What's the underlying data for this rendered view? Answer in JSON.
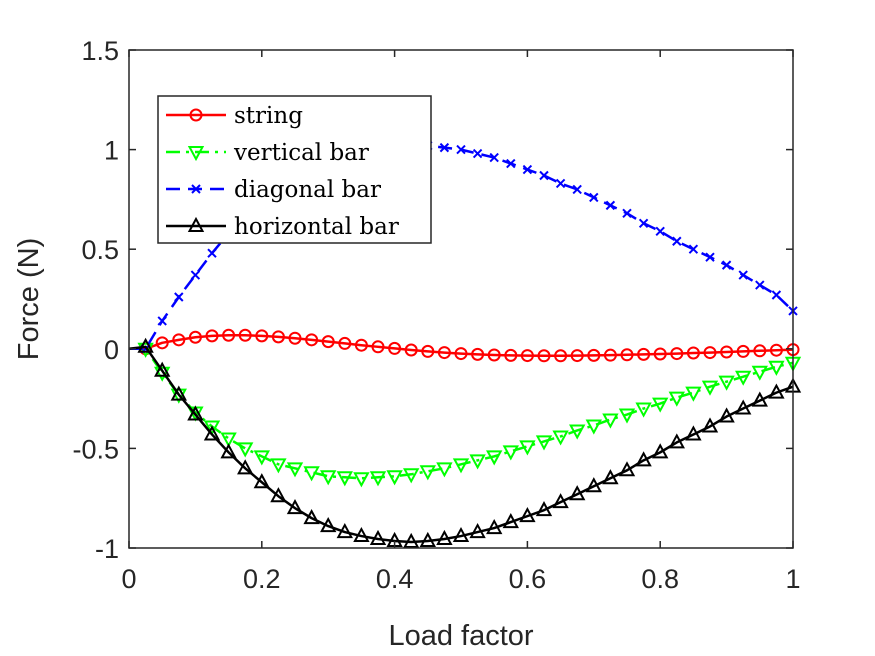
{
  "chart_data": {
    "type": "line",
    "xlabel": "Load factor",
    "ylabel": "Force (N)",
    "xlim": [
      0,
      1
    ],
    "ylim": [
      -1,
      1.5
    ],
    "xticks": [
      0,
      0.2,
      0.4,
      0.6,
      0.8,
      1
    ],
    "xtick_labels": [
      "0",
      "0.2",
      "0.4",
      "0.6",
      "0.8",
      "1"
    ],
    "yticks": [
      -1,
      -0.5,
      0,
      0.5,
      1,
      1.5
    ],
    "ytick_labels": [
      "-1",
      "-0.5",
      "0",
      "0.5",
      "1",
      "1.5"
    ],
    "grid": false,
    "legend_position": "top-left",
    "x": [
      0.025,
      0.05,
      0.075,
      0.1,
      0.125,
      0.15,
      0.175,
      0.2,
      0.225,
      0.25,
      0.275,
      0.3,
      0.325,
      0.35,
      0.375,
      0.4,
      0.425,
      0.45,
      0.475,
      0.5,
      0.525,
      0.55,
      0.575,
      0.6,
      0.625,
      0.65,
      0.675,
      0.7,
      0.725,
      0.75,
      0.775,
      0.8,
      0.825,
      0.85,
      0.875,
      0.9,
      0.925,
      0.95,
      0.975,
      1.0
    ],
    "series": [
      {
        "name": "string",
        "color": "#ff0000",
        "dash": "solid",
        "marker": "circle",
        "values": [
          0.0,
          0.03,
          0.045,
          0.058,
          0.065,
          0.068,
          0.068,
          0.065,
          0.06,
          0.053,
          0.045,
          0.036,
          0.027,
          0.018,
          0.01,
          0.002,
          -0.006,
          -0.013,
          -0.019,
          -0.024,
          -0.028,
          -0.031,
          -0.033,
          -0.034,
          -0.035,
          -0.035,
          -0.034,
          -0.033,
          -0.032,
          -0.03,
          -0.028,
          -0.026,
          -0.024,
          -0.021,
          -0.019,
          -0.016,
          -0.013,
          -0.01,
          -0.007,
          -0.004
        ]
      },
      {
        "name": "vertical bar",
        "color": "#00ff00",
        "dash": "dashdot",
        "marker": "triangle-down",
        "values": [
          0.0,
          -0.12,
          -0.23,
          -0.32,
          -0.39,
          -0.45,
          -0.5,
          -0.54,
          -0.58,
          -0.6,
          -0.62,
          -0.64,
          -0.645,
          -0.65,
          -0.645,
          -0.64,
          -0.63,
          -0.615,
          -0.6,
          -0.58,
          -0.56,
          -0.54,
          -0.515,
          -0.49,
          -0.465,
          -0.44,
          -0.41,
          -0.385,
          -0.355,
          -0.33,
          -0.3,
          -0.275,
          -0.245,
          -0.22,
          -0.19,
          -0.165,
          -0.14,
          -0.115,
          -0.09,
          -0.07
        ]
      },
      {
        "name": "diagonal bar",
        "color": "#0000ff",
        "dash": "dashed",
        "marker": "x",
        "values": [
          0.0,
          0.14,
          0.26,
          0.37,
          0.48,
          0.58,
          0.66,
          0.74,
          0.8,
          0.86,
          0.91,
          0.95,
          0.98,
          1.0,
          1.02,
          1.03,
          1.03,
          1.02,
          1.01,
          1.0,
          0.98,
          0.96,
          0.93,
          0.9,
          0.87,
          0.83,
          0.8,
          0.76,
          0.72,
          0.68,
          0.63,
          0.59,
          0.54,
          0.5,
          0.46,
          0.42,
          0.37,
          0.32,
          0.27,
          0.19
        ]
      },
      {
        "name": "horizontal bar",
        "color": "#000000",
        "dash": "solid",
        "marker": "triangle-up",
        "values": [
          0.01,
          -0.11,
          -0.23,
          -0.33,
          -0.43,
          -0.52,
          -0.6,
          -0.67,
          -0.74,
          -0.8,
          -0.85,
          -0.89,
          -0.92,
          -0.94,
          -0.955,
          -0.965,
          -0.97,
          -0.965,
          -0.955,
          -0.94,
          -0.92,
          -0.9,
          -0.87,
          -0.84,
          -0.81,
          -0.77,
          -0.73,
          -0.69,
          -0.65,
          -0.61,
          -0.56,
          -0.52,
          -0.47,
          -0.43,
          -0.39,
          -0.34,
          -0.3,
          -0.26,
          -0.22,
          -0.19
        ]
      }
    ]
  }
}
